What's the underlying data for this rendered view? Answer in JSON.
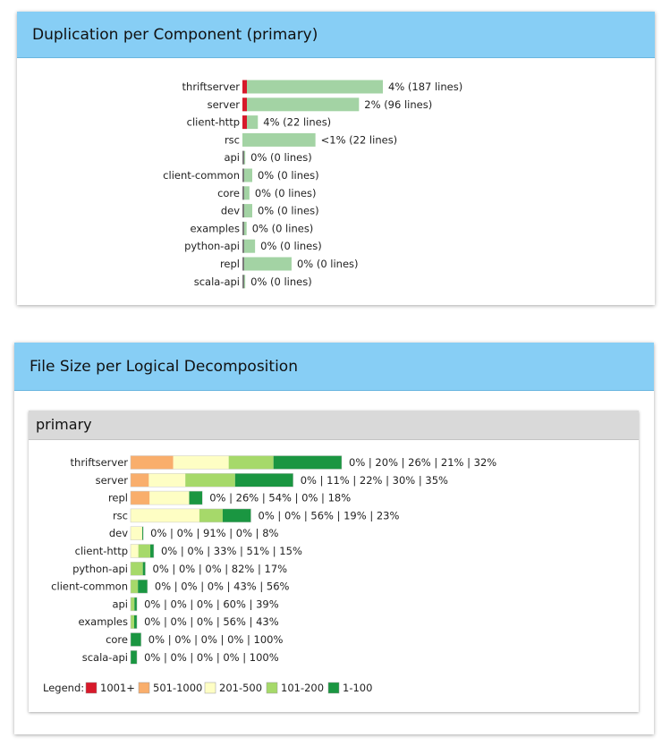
{
  "duplication": {
    "title": "Duplication per Component (primary)",
    "chart_data": {
      "type": "bar",
      "title": "Duplication per Component (primary)",
      "categories": [
        "thriftserver",
        "server",
        "client-http",
        "rsc",
        "api",
        "client-common",
        "core",
        "dev",
        "examples",
        "python-api",
        "repl",
        "scala-api"
      ],
      "series": [
        {
          "values": [
            4,
            2,
            4,
            0.5,
            0,
            0,
            0,
            0,
            0,
            0,
            0,
            0
          ]
        }
      ],
      "relative_size": [
        1.0,
        0.83,
        0.11,
        0.52,
        0.02,
        0.07,
        0.05,
        0.07,
        0.03,
        0.09,
        0.35,
        0.02
      ],
      "bar_labels": [
        "4% (187 lines)",
        "2% (96 lines)",
        "4% (22 lines)",
        "<1% (22 lines)",
        "0% (0 lines)",
        "0% (0 lines)",
        "0% (0 lines)",
        "0% (0 lines)",
        "0% (0 lines)",
        "0% (0 lines)",
        "0% (0 lines)",
        "0% (0 lines)"
      ],
      "colors": {
        "duplicated": "#d7192a",
        "size": "#a3d3a4"
      }
    }
  },
  "file_size": {
    "title": "File Size per Logical Decomposition",
    "panel_title": "primary",
    "legend_label": "Legend:",
    "chart_data": {
      "type": "bar",
      "stacked": true,
      "categories": [
        "thriftserver",
        "server",
        "repl",
        "rsc",
        "dev",
        "client-http",
        "python-api",
        "client-common",
        "api",
        "examples",
        "core",
        "scala-api"
      ],
      "series": [
        {
          "name": "1001+",
          "color": "#d7192a",
          "values": [
            0,
            0,
            0,
            0,
            0,
            0,
            0,
            0,
            0,
            0,
            0,
            0
          ]
        },
        {
          "name": "501-1000",
          "color": "#f9ae6c",
          "values": [
            20,
            11,
            26,
            0,
            0,
            0,
            0,
            0,
            0,
            0,
            0,
            0
          ]
        },
        {
          "name": "201-500",
          "color": "#fefec4",
          "values": [
            26,
            22,
            54,
            56,
            91,
            33,
            0,
            0,
            0,
            0,
            0,
            0
          ]
        },
        {
          "name": "101-200",
          "color": "#a6d96a",
          "values": [
            21,
            30,
            0,
            19,
            0,
            51,
            82,
            43,
            60,
            56,
            0,
            0
          ]
        },
        {
          "name": "1-100",
          "color": "#1a9641",
          "values": [
            32,
            35,
            18,
            23,
            8,
            15,
            17,
            56,
            39,
            43,
            100,
            100
          ]
        }
      ],
      "relative_size": [
        1.0,
        0.77,
        0.34,
        0.57,
        0.06,
        0.11,
        0.07,
        0.08,
        0.03,
        0.03,
        0.05,
        0.03
      ],
      "bar_labels": [
        "0% | 20% | 26% | 21% | 32%",
        "0% | 11% | 22% | 30% | 35%",
        "0% | 26% | 54% | 0% | 18%",
        "0% | 0% | 56% | 19% | 23%",
        "0% | 0% | 91% | 0% | 8%",
        "0% | 0% | 33% | 51% | 15%",
        "0% | 0% | 0% | 82% | 17%",
        "0% | 0% | 0% | 43% | 56%",
        "0% | 0% | 0% | 60% | 39%",
        "0% | 0% | 0% | 56% | 43%",
        "0% | 0% | 0% | 0% | 100%",
        "0% | 0% | 0% | 0% | 100%"
      ]
    }
  }
}
